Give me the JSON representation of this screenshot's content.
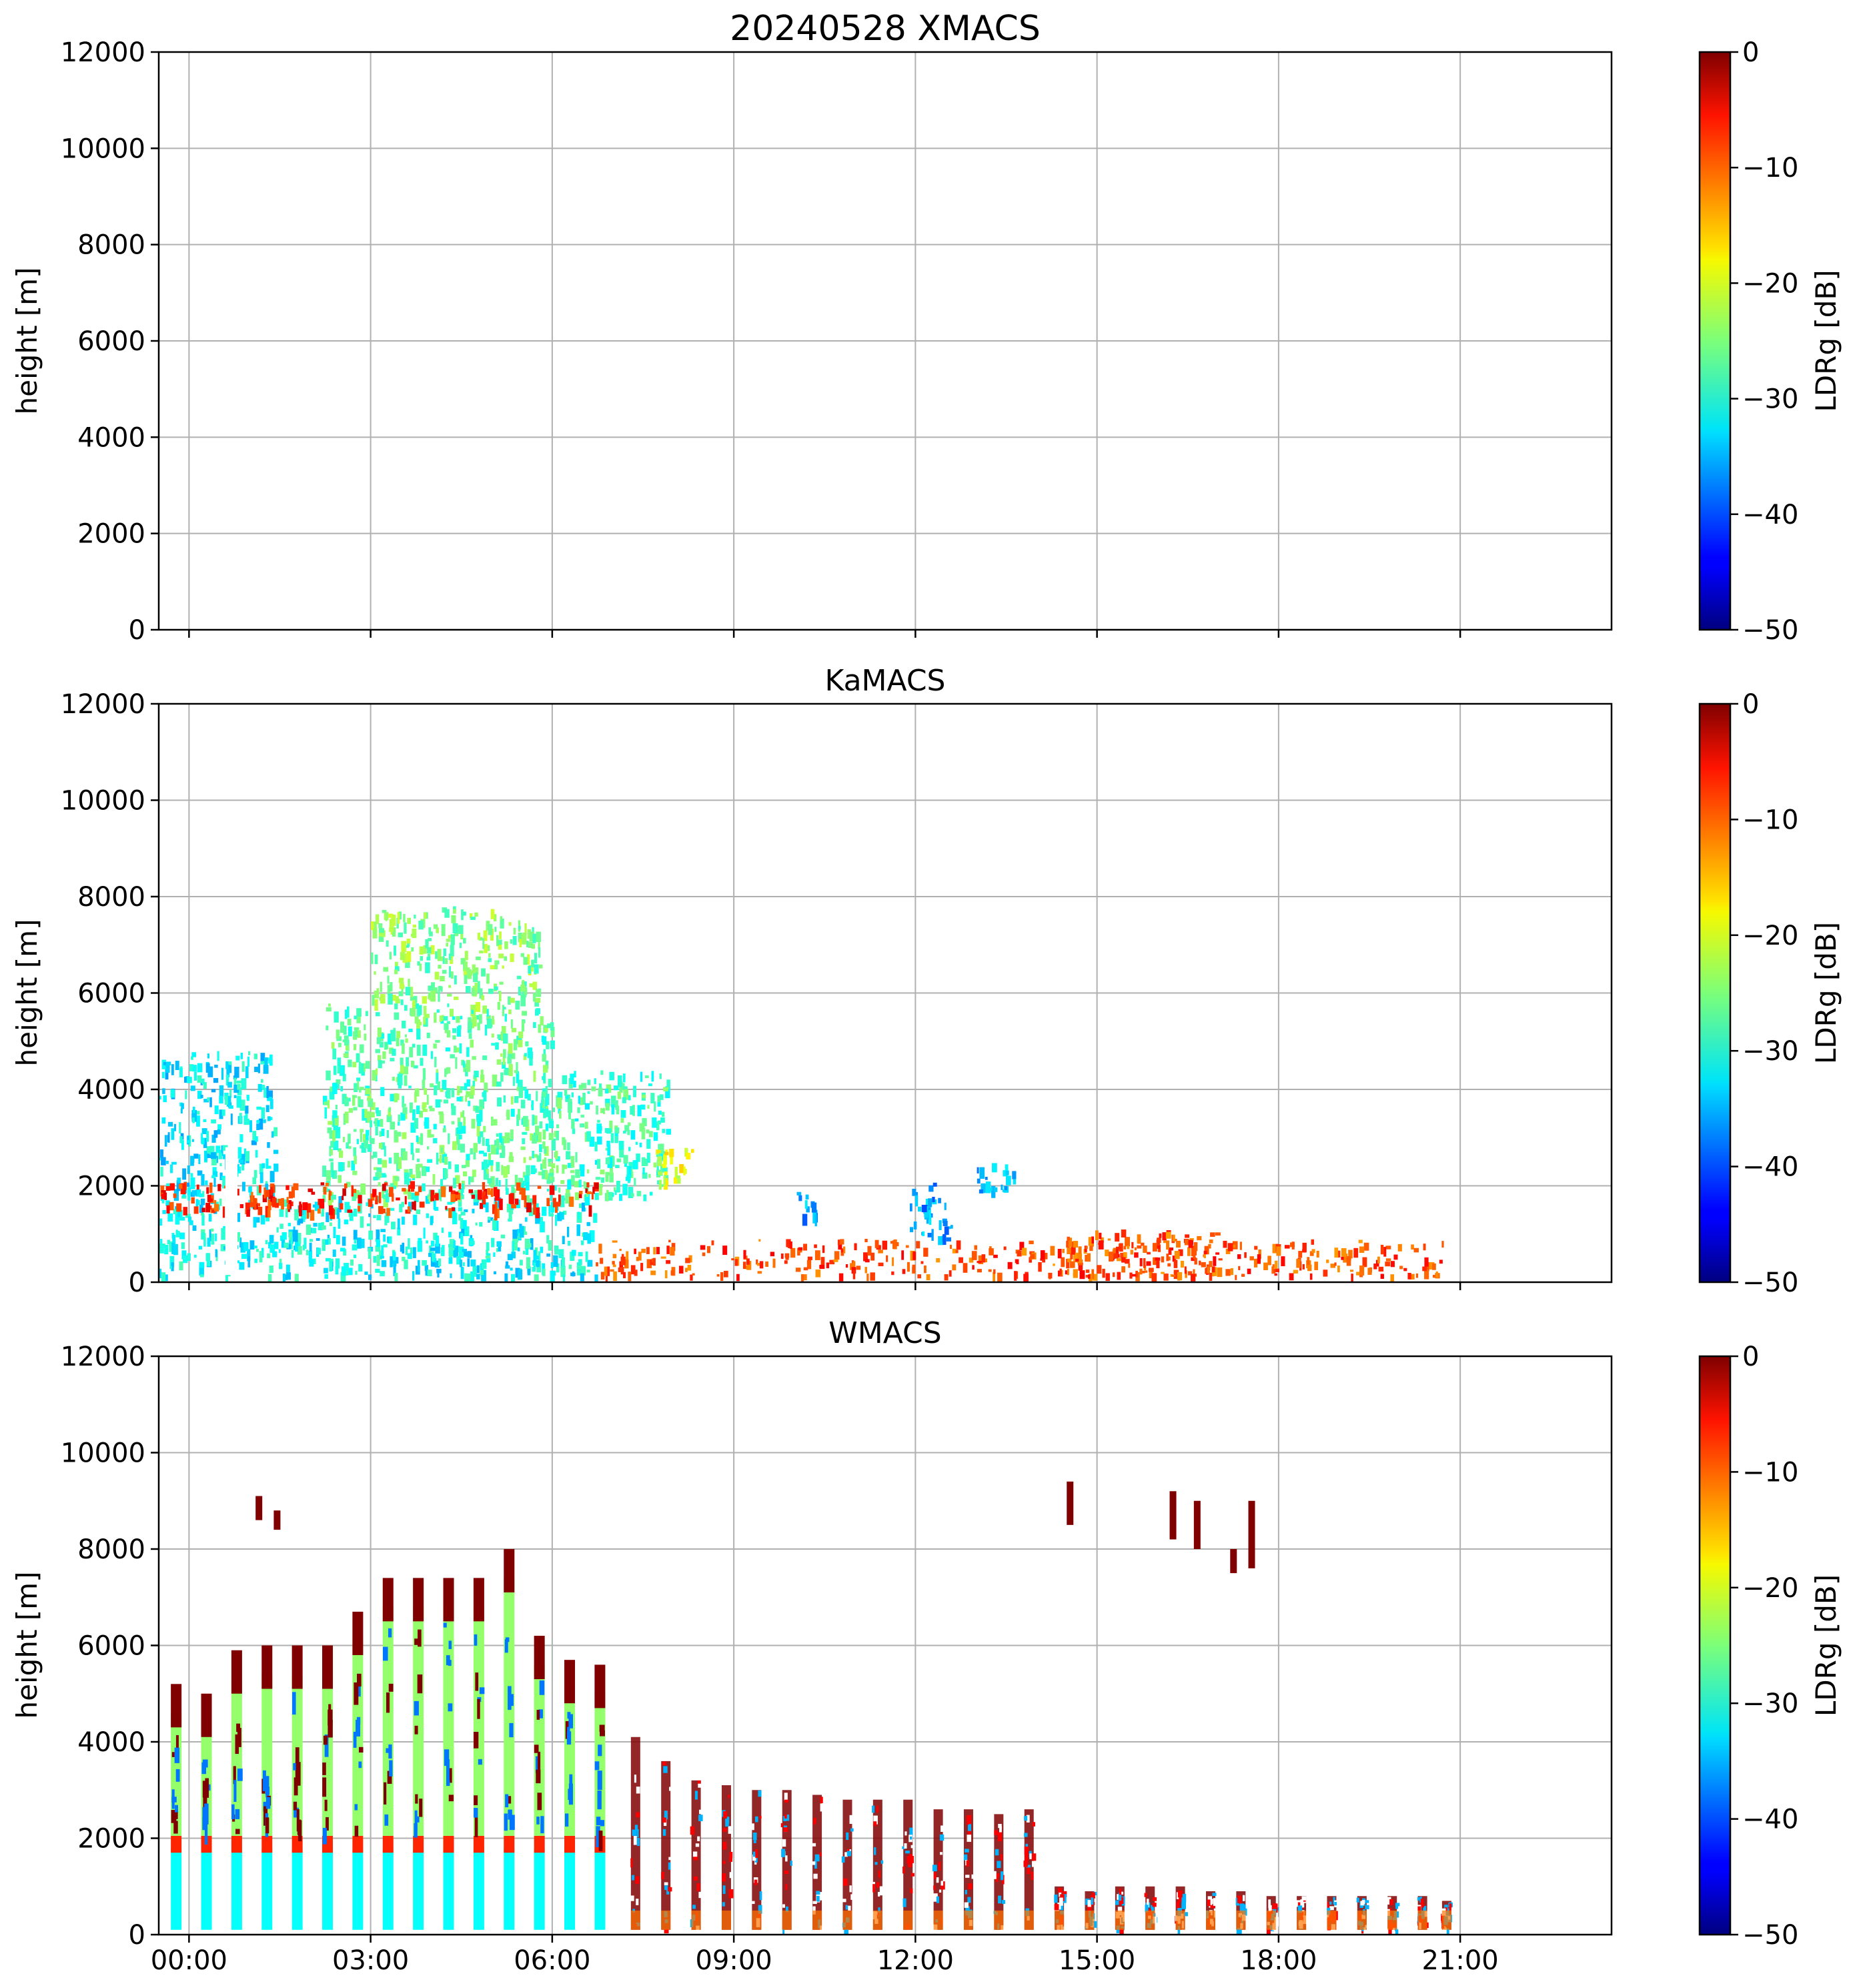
{
  "chart_data": [
    {
      "type": "heatmap",
      "title": "20240528 XMACS",
      "xlabel": "",
      "ylabel": "height [m]",
      "xlim": [
        -0.5,
        23.5
      ],
      "ylim": [
        0,
        12000
      ],
      "yticks": [
        "0",
        "2000",
        "4000",
        "6000",
        "8000",
        "10000",
        "12000"
      ],
      "xtick_values": [
        0,
        3,
        6,
        9,
        12,
        15,
        18,
        21
      ],
      "show_xtick_labels": false,
      "grid": true,
      "colorbar": {
        "label": "LDRg [dB]",
        "min": -50,
        "max": 0,
        "ticks": [
          "−50",
          "−40",
          "−30",
          "−20",
          "−10",
          "0"
        ]
      },
      "features": []
    },
    {
      "type": "heatmap",
      "title": "KaMACS",
      "xlabel": "",
      "ylabel": "height [m]",
      "xlim": [
        -0.5,
        23.5
      ],
      "ylim": [
        0,
        12000
      ],
      "yticks": [
        "0",
        "2000",
        "4000",
        "6000",
        "8000",
        "10000",
        "12000"
      ],
      "xtick_values": [
        0,
        3,
        6,
        9,
        12,
        15,
        18,
        21
      ],
      "show_xtick_labels": false,
      "grid": true,
      "colorbar": {
        "label": "LDRg [dB]",
        "min": -50,
        "max": 0,
        "ticks": [
          "−50",
          "−40",
          "−30",
          "−20",
          "−10",
          "0"
        ]
      },
      "features": [
        {
          "name": "rain-below-melting-layer",
          "t0": -0.5,
          "t1": 6.7,
          "h0": 150,
          "h1": 1800,
          "ldr": -31
        },
        {
          "name": "ice-cloud-early",
          "t0": -0.5,
          "t1": 1.4,
          "h0": 1800,
          "h1": 4800,
          "ldr": -32
        },
        {
          "name": "ice-cloud-main",
          "t0": 2.2,
          "t1": 6.0,
          "h0": 1800,
          "h1": 5800,
          "ldr": -27
        },
        {
          "name": "ice-cloud-tops",
          "t0": 3.0,
          "t1": 5.8,
          "h0": 5800,
          "h1": 7800,
          "ldr": -25
        },
        {
          "name": "ice-cloud-decay",
          "t0": 5.8,
          "t1": 7.9,
          "h0": 1800,
          "h1": 4400,
          "ldr": -28
        },
        {
          "name": "ice-layer-8h",
          "t0": 7.6,
          "t1": 8.3,
          "h0": 2000,
          "h1": 2800,
          "ldr": -20
        },
        {
          "name": "melting-layer-bright-band",
          "t0": -0.5,
          "t1": 6.7,
          "h0": 1500,
          "h1": 2100,
          "ldr": -8
        },
        {
          "name": "clear-gap",
          "t0": 0.6,
          "t1": 0.8,
          "h0": 150,
          "h1": 2800,
          "ldr": null
        },
        {
          "name": "low-level-clutter",
          "t0": 6.7,
          "t1": 20.7,
          "h0": 150,
          "h1": 900,
          "ldr": -10
        },
        {
          "name": "clutter-peak",
          "t0": 14.5,
          "t1": 17.0,
          "h0": 150,
          "h1": 1100,
          "ldr": -10
        },
        {
          "name": "shallow-cloud-10h",
          "t0": 10.0,
          "t1": 10.5,
          "h0": 1400,
          "h1": 1900,
          "ldr": -36
        },
        {
          "name": "shallow-cloud-12h",
          "t0": 11.9,
          "t1": 12.6,
          "h0": 900,
          "h1": 2100,
          "ldr": -36
        },
        {
          "name": "shallow-cloud-13h",
          "t0": 13.0,
          "t1": 13.8,
          "h0": 1900,
          "h1": 2500,
          "ldr": -35
        }
      ]
    },
    {
      "type": "heatmap",
      "title": "WMACS",
      "xlabel": "",
      "ylabel": "height [m]",
      "xlim": [
        -0.5,
        23.5
      ],
      "ylim": [
        0,
        12000
      ],
      "yticks": [
        "0",
        "2000",
        "4000",
        "6000",
        "8000",
        "10000",
        "12000"
      ],
      "xtick_values": [
        0,
        3,
        6,
        9,
        12,
        15,
        18,
        21
      ],
      "xticks": [
        "00:00",
        "03:00",
        "06:00",
        "09:00",
        "12:00",
        "15:00",
        "18:00",
        "21:00"
      ],
      "show_xtick_labels": true,
      "grid": true,
      "colorbar": {
        "label": "LDRg [dB]",
        "min": -50,
        "max": 0,
        "ticks": [
          "−50",
          "−40",
          "−30",
          "−20",
          "−10",
          "0"
        ]
      },
      "scan_columns_early": [
        {
          "t": -0.3,
          "top": 5200
        },
        {
          "t": 0.2,
          "top": 5000
        },
        {
          "t": 0.7,
          "top": 5900
        },
        {
          "t": 1.2,
          "top": 6000
        },
        {
          "t": 1.7,
          "top": 6000
        },
        {
          "t": 2.2,
          "top": 6000
        },
        {
          "t": 2.7,
          "top": 6700
        },
        {
          "t": 3.2,
          "top": 7400
        },
        {
          "t": 3.7,
          "top": 7400
        },
        {
          "t": 4.2,
          "top": 7400
        },
        {
          "t": 4.7,
          "top": 7400
        },
        {
          "t": 5.2,
          "top": 8000
        },
        {
          "t": 5.7,
          "top": 6200
        },
        {
          "t": 6.2,
          "top": 5700
        },
        {
          "t": 6.7,
          "top": 5600
        }
      ],
      "scan_columns_late": [
        {
          "t": 7.3,
          "top": 4100
        },
        {
          "t": 7.8,
          "top": 3600
        },
        {
          "t": 8.3,
          "top": 3200
        },
        {
          "t": 8.8,
          "top": 3100
        },
        {
          "t": 9.3,
          "top": 3000
        },
        {
          "t": 9.8,
          "top": 3000
        },
        {
          "t": 10.3,
          "top": 2900
        },
        {
          "t": 10.8,
          "top": 2800
        },
        {
          "t": 11.3,
          "top": 2800
        },
        {
          "t": 11.8,
          "top": 2800
        },
        {
          "t": 12.3,
          "top": 2600
        },
        {
          "t": 12.8,
          "top": 2600
        },
        {
          "t": 13.3,
          "top": 2500
        },
        {
          "t": 13.8,
          "top": 2600
        },
        {
          "t": 14.3,
          "top": 1000
        },
        {
          "t": 14.8,
          "top": 900
        },
        {
          "t": 15.3,
          "top": 1000
        },
        {
          "t": 15.8,
          "top": 1000
        },
        {
          "t": 16.3,
          "top": 1000
        },
        {
          "t": 16.8,
          "top": 900
        },
        {
          "t": 17.3,
          "top": 900
        },
        {
          "t": 17.8,
          "top": 800
        },
        {
          "t": 18.3,
          "top": 800
        },
        {
          "t": 18.8,
          "top": 800
        },
        {
          "t": 19.3,
          "top": 800
        },
        {
          "t": 19.8,
          "top": 800
        },
        {
          "t": 20.3,
          "top": 800
        },
        {
          "t": 20.7,
          "top": 700
        }
      ],
      "upper_cloud_patches": [
        {
          "t": 1.1,
          "h0": 8600,
          "h1": 9100
        },
        {
          "t": 1.4,
          "h0": 8400,
          "h1": 8800
        },
        {
          "t": 14.5,
          "h0": 8500,
          "h1": 9400
        },
        {
          "t": 16.2,
          "h0": 8200,
          "h1": 9200
        },
        {
          "t": 16.6,
          "h0": 8000,
          "h1": 9000
        },
        {
          "t": 17.2,
          "h0": 7500,
          "h1": 8000
        },
        {
          "t": 17.5,
          "h0": 7600,
          "h1": 9000
        }
      ]
    }
  ]
}
